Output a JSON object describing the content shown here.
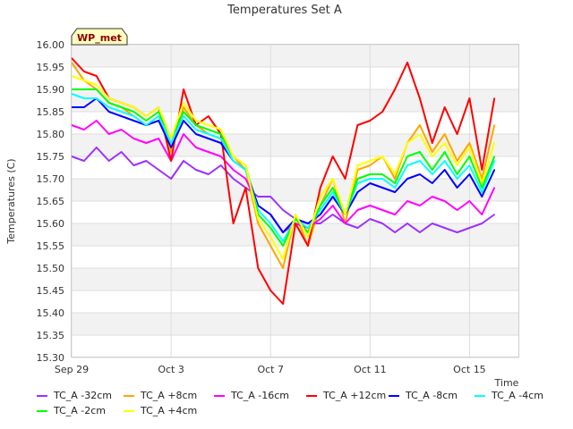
{
  "chart_data": {
    "type": "line",
    "title": "Temperatures Set A",
    "xlabel": "Time",
    "ylabel": "Temperatures (C)",
    "ylim": [
      15.3,
      16.0
    ],
    "yticks": [
      "16.00",
      "15.95",
      "15.90",
      "15.85",
      "15.80",
      "15.75",
      "15.70",
      "15.65",
      "15.60",
      "15.55",
      "15.50",
      "15.45",
      "15.40",
      "15.35",
      "15.30"
    ],
    "x_start": "Sep 29",
    "x_end": "Oct 17",
    "xticks": [
      "Sep 29",
      "Oct 3",
      "Oct 7",
      "Oct 11",
      "Oct 15"
    ],
    "grid": true,
    "legend_position": "bottom",
    "badge": "WP_met",
    "x": [
      "Sep 29",
      "Sep 29.5",
      "Sep 30",
      "Sep 30.5",
      "Oct 1",
      "Oct 1.5",
      "Oct 2",
      "Oct 2.5",
      "Oct 3",
      "Oct 3.5",
      "Oct 4",
      "Oct 4.5",
      "Oct 5",
      "Oct 5.5",
      "Oct 6",
      "Oct 6.5",
      "Oct 7",
      "Oct 7.5",
      "Oct 8",
      "Oct 8.5",
      "Oct 9",
      "Oct 9.5",
      "Oct 10",
      "Oct 10.5",
      "Oct 11",
      "Oct 11.5",
      "Oct 12",
      "Oct 12.5",
      "Oct 13",
      "Oct 13.5",
      "Oct 14",
      "Oct 14.5",
      "Oct 15",
      "Oct 15.5",
      "Oct 16"
    ],
    "series": [
      {
        "name": "TC_A -32cm",
        "color": "#9b30ff",
        "values": [
          15.75,
          15.74,
          15.77,
          15.74,
          15.76,
          15.73,
          15.74,
          15.72,
          15.7,
          15.74,
          15.72,
          15.71,
          15.73,
          15.7,
          15.68,
          15.66,
          15.66,
          15.63,
          15.61,
          15.6,
          15.6,
          15.62,
          15.6,
          15.59,
          15.61,
          15.6,
          15.58,
          15.6,
          15.58,
          15.6,
          15.59,
          15.58,
          15.59,
          15.6,
          15.62
        ]
      },
      {
        "name": "TC_A +8cm",
        "color": "#ffa500",
        "values": [
          15.96,
          15.92,
          15.9,
          15.87,
          15.86,
          15.84,
          15.82,
          15.84,
          15.76,
          15.86,
          15.82,
          15.8,
          15.79,
          15.75,
          15.72,
          15.6,
          15.55,
          15.5,
          15.62,
          15.55,
          15.64,
          15.7,
          15.6,
          15.72,
          15.73,
          15.75,
          15.7,
          15.78,
          15.82,
          15.76,
          15.8,
          15.74,
          15.78,
          15.7,
          15.82
        ]
      },
      {
        "name": "TC_A -16cm",
        "color": "#ff00ff",
        "values": [
          15.82,
          15.81,
          15.83,
          15.8,
          15.81,
          15.79,
          15.78,
          15.79,
          15.74,
          15.8,
          15.77,
          15.76,
          15.75,
          15.72,
          15.7,
          15.64,
          15.62,
          15.58,
          15.6,
          15.59,
          15.61,
          15.64,
          15.6,
          15.63,
          15.64,
          15.63,
          15.62,
          15.65,
          15.64,
          15.66,
          15.65,
          15.63,
          15.65,
          15.62,
          15.68
        ]
      },
      {
        "name": "TC_A +12cm",
        "color": "#ff0000",
        "values": [
          15.97,
          15.94,
          15.93,
          15.88,
          15.87,
          15.86,
          15.84,
          15.86,
          15.74,
          15.9,
          15.82,
          15.84,
          15.8,
          15.6,
          15.68,
          15.5,
          15.45,
          15.42,
          15.6,
          15.55,
          15.68,
          15.75,
          15.7,
          15.82,
          15.83,
          15.85,
          15.9,
          15.96,
          15.88,
          15.78,
          15.86,
          15.8,
          15.88,
          15.72,
          15.88
        ]
      },
      {
        "name": "TC_A -8cm",
        "color": "#0000ff",
        "values": [
          15.86,
          15.86,
          15.88,
          15.85,
          15.84,
          15.83,
          15.82,
          15.83,
          15.77,
          15.83,
          15.8,
          15.79,
          15.78,
          15.74,
          15.72,
          15.64,
          15.62,
          15.58,
          15.61,
          15.6,
          15.62,
          15.66,
          15.62,
          15.67,
          15.69,
          15.68,
          15.67,
          15.7,
          15.71,
          15.69,
          15.72,
          15.68,
          15.71,
          15.66,
          15.72
        ]
      },
      {
        "name": "TC_A -4cm",
        "color": "#00ffff",
        "values": [
          15.89,
          15.88,
          15.88,
          15.86,
          15.85,
          15.84,
          15.82,
          15.84,
          15.78,
          15.84,
          15.81,
          15.8,
          15.79,
          15.74,
          15.72,
          15.63,
          15.6,
          15.56,
          15.61,
          15.59,
          15.63,
          15.67,
          15.62,
          15.69,
          15.7,
          15.7,
          15.68,
          15.73,
          15.74,
          15.71,
          15.74,
          15.7,
          15.73,
          15.67,
          15.74
        ]
      },
      {
        "name": "TC_A -2cm",
        "color": "#00ff00",
        "values": [
          15.9,
          15.9,
          15.9,
          15.87,
          15.86,
          15.85,
          15.83,
          15.85,
          15.79,
          15.85,
          15.82,
          15.81,
          15.8,
          15.75,
          15.73,
          15.62,
          15.59,
          15.55,
          15.61,
          15.58,
          15.64,
          15.68,
          15.62,
          15.7,
          15.71,
          15.71,
          15.69,
          15.75,
          15.76,
          15.72,
          15.76,
          15.71,
          15.75,
          15.68,
          15.75
        ]
      },
      {
        "name": "TC_A +4cm",
        "color": "#ffff00",
        "values": [
          15.93,
          15.92,
          15.91,
          15.88,
          15.87,
          15.86,
          15.84,
          15.86,
          15.79,
          15.87,
          15.83,
          15.82,
          15.81,
          15.75,
          15.73,
          15.61,
          15.57,
          15.52,
          15.62,
          15.57,
          15.66,
          15.7,
          15.62,
          15.73,
          15.74,
          15.75,
          15.71,
          15.78,
          15.8,
          15.75,
          15.78,
          15.73,
          15.77,
          15.69,
          15.78
        ]
      }
    ]
  }
}
